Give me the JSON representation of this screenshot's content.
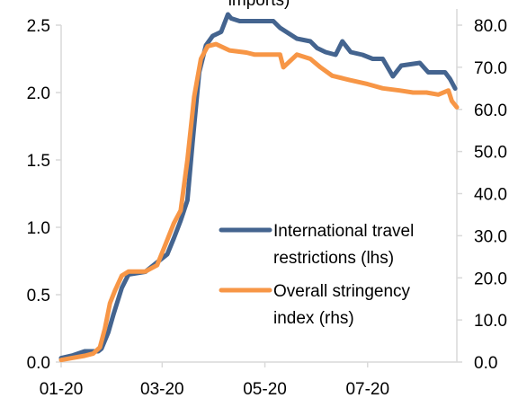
{
  "chart_data": {
    "type": "line",
    "title": "imports)",
    "x_tick_labels": [
      "01-20",
      "03-20",
      "05-20",
      "07-20"
    ],
    "x_tick_dates": [
      "2020-01-01",
      "2020-03-01",
      "2020-05-01",
      "2020-07-01"
    ],
    "x_range": [
      "2020-01-01",
      "2020-08-23"
    ],
    "y_left": {
      "min": 0,
      "max": 2.5,
      "ticks": [
        "0.0",
        "0.5",
        "1.0",
        "1.5",
        "2.0",
        "2.5"
      ]
    },
    "y_right": {
      "min": 0,
      "max": 80,
      "ticks": [
        "0.0",
        "10.0",
        "20.0",
        "30.0",
        "40.0",
        "50.0",
        "60.0",
        "70.0",
        "80.0"
      ]
    },
    "grid": false,
    "legend_position": "lower-right",
    "series": [
      {
        "name_lines": [
          "International travel",
          "restrictions (lhs)"
        ],
        "axis": "left",
        "color": "#44648f",
        "x": [
          "2020-01-01",
          "2020-01-08",
          "2020-01-15",
          "2020-01-23",
          "2020-01-25",
          "2020-01-29",
          "2020-02-01",
          "2020-02-06",
          "2020-02-10",
          "2020-02-20",
          "2020-02-28",
          "2020-03-04",
          "2020-03-08",
          "2020-03-12",
          "2020-03-16",
          "2020-03-19",
          "2020-03-23",
          "2020-03-27",
          "2020-03-31",
          "2020-04-05",
          "2020-04-09",
          "2020-04-11",
          "2020-04-16",
          "2020-04-22",
          "2020-05-06",
          "2020-05-10",
          "2020-05-20",
          "2020-05-28",
          "2020-06-01",
          "2020-06-06",
          "2020-06-12",
          "2020-06-16",
          "2020-06-21",
          "2020-06-28",
          "2020-07-04",
          "2020-07-10",
          "2020-07-16",
          "2020-07-21",
          "2020-08-01",
          "2020-08-06",
          "2020-08-16",
          "2020-08-19",
          "2020-08-22"
        ],
        "y": [
          0.03,
          0.05,
          0.08,
          0.08,
          0.1,
          0.22,
          0.35,
          0.55,
          0.65,
          0.67,
          0.75,
          0.8,
          0.92,
          1.05,
          1.2,
          1.62,
          2.15,
          2.35,
          2.42,
          2.45,
          2.58,
          2.55,
          2.53,
          2.53,
          2.53,
          2.48,
          2.4,
          2.38,
          2.33,
          2.3,
          2.28,
          2.38,
          2.3,
          2.28,
          2.25,
          2.25,
          2.12,
          2.2,
          2.22,
          2.15,
          2.15,
          2.1,
          2.03
        ]
      },
      {
        "name_lines": [
          "Overall stringency",
          "index (rhs)"
        ],
        "axis": "right",
        "color": "#f79646",
        "x": [
          "2020-01-01",
          "2020-01-08",
          "2020-01-15",
          "2020-01-20",
          "2020-01-24",
          "2020-01-27",
          "2020-01-30",
          "2020-02-02",
          "2020-02-06",
          "2020-02-10",
          "2020-02-20",
          "2020-02-27",
          "2020-03-03",
          "2020-03-08",
          "2020-03-12",
          "2020-03-16",
          "2020-03-20",
          "2020-03-24",
          "2020-03-28",
          "2020-04-02",
          "2020-04-10",
          "2020-04-20",
          "2020-04-25",
          "2020-05-10",
          "2020-05-12",
          "2020-05-20",
          "2020-05-28",
          "2020-06-03",
          "2020-06-10",
          "2020-06-20",
          "2020-07-01",
          "2020-07-10",
          "2020-07-20",
          "2020-07-28",
          "2020-08-05",
          "2020-08-12",
          "2020-08-18",
          "2020-08-20",
          "2020-08-23"
        ],
        "y": [
          0.5,
          1,
          1.5,
          2,
          3.5,
          8,
          14,
          17,
          20.5,
          21.5,
          21.5,
          23,
          28,
          33,
          36,
          48,
          63,
          72,
          75,
          75.5,
          74,
          73.5,
          73,
          73,
          70,
          73,
          72,
          70,
          68,
          67,
          66,
          65,
          64.5,
          64,
          64,
          63.5,
          64.5,
          62,
          60.5
        ]
      }
    ]
  }
}
